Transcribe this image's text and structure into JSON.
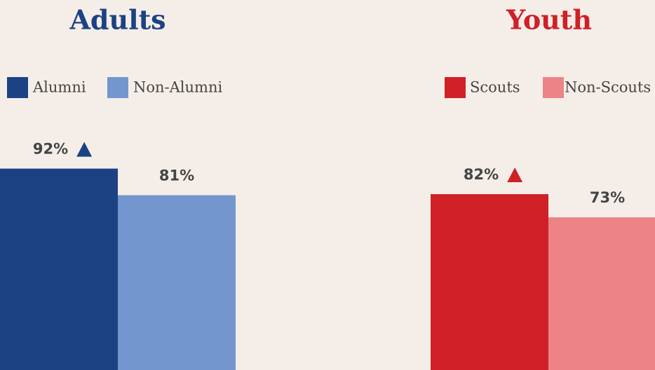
{
  "chart_data": [
    {
      "type": "bar",
      "title": "Adults",
      "ylim": [
        0,
        100
      ],
      "series": [
        {
          "name": "Alumni",
          "color": "#1c4283",
          "values": [
            92
          ],
          "value_labels": [
            "92%"
          ]
        },
        {
          "name": "Non-Alumni",
          "color": "#7396cf",
          "values": [
            81
          ],
          "value_labels": [
            "81%"
          ]
        }
      ]
    },
    {
      "type": "bar",
      "title": "Youth",
      "ylim": [
        0,
        100
      ],
      "series": [
        {
          "name": "Scouts",
          "color": "#d02027",
          "values": [
            82
          ],
          "value_labels": [
            "82%"
          ]
        },
        {
          "name": "Non-Scouts",
          "color": "#ee8387",
          "values": [
            73
          ],
          "value_labels": [
            "73%"
          ]
        }
      ]
    }
  ]
}
